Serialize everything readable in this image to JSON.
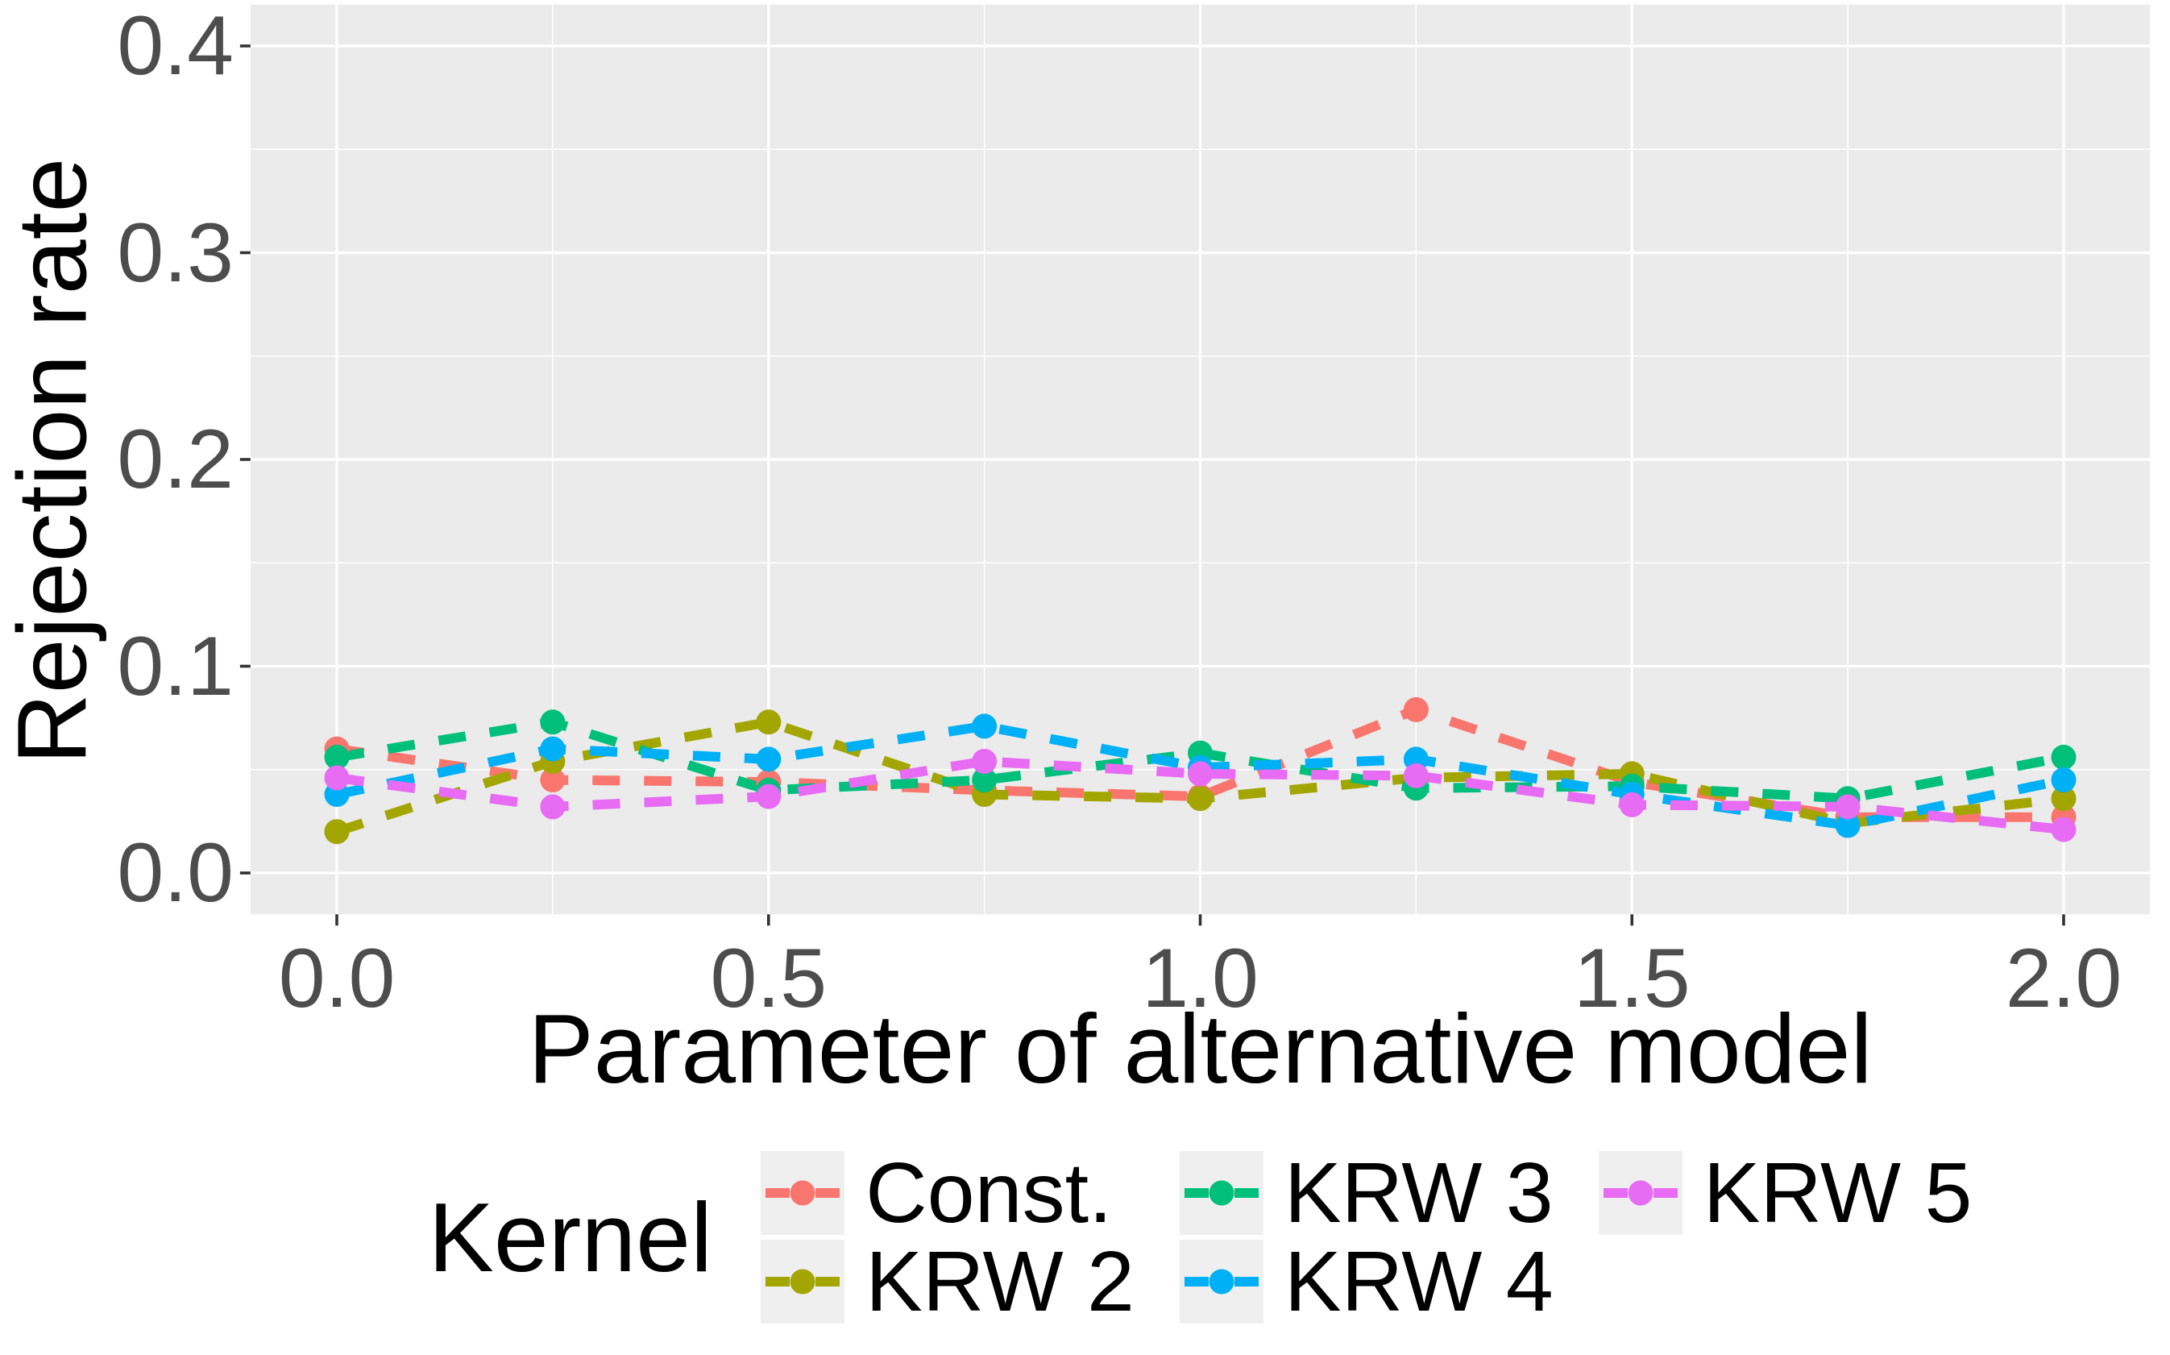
{
  "figure": {
    "background": "#FFFFFF",
    "panel_background": "#EBEBEB",
    "gridline_color": "#FFFFFF",
    "tick_mark_color": "#333333",
    "tick_label_color": "#4D4D4D",
    "axis_title_color": "#000000",
    "legend_key_background": "#EFEFEF"
  },
  "chart_data": {
    "type": "line",
    "title": "",
    "xlabel": "Parameter of alternative model",
    "ylabel": "Rejection rate",
    "legend_title": "Kernel",
    "legend_position": "bottom",
    "line_style": "dashed",
    "grid": "on",
    "xlim": [
      -0.1,
      2.1
    ],
    "ylim": [
      -0.02,
      0.42
    ],
    "x_ticks": [
      0.0,
      0.5,
      1.0,
      1.5,
      2.0
    ],
    "x_tick_labels": [
      "0.0",
      "0.5",
      "1.0",
      "1.5",
      "2.0"
    ],
    "x_minor_ticks": [
      0.25,
      0.75,
      1.25,
      1.75
    ],
    "y_ticks": [
      0.0,
      0.1,
      0.2,
      0.3,
      0.4
    ],
    "y_tick_labels": [
      "0.0",
      "0.1",
      "0.2",
      "0.3",
      "0.4"
    ],
    "y_minor_ticks": [
      0.05,
      0.15,
      0.25,
      0.35
    ],
    "x": [
      0.0,
      0.25,
      0.5,
      0.75,
      1.0,
      1.25,
      1.5,
      1.75,
      2.0
    ],
    "series": [
      {
        "name": "Const.",
        "color": "#F8766D",
        "values": [
          0.06,
          0.045,
          0.044,
          0.04,
          0.037,
          0.079,
          0.044,
          0.027,
          0.027
        ]
      },
      {
        "name": "KRW 2",
        "color": "#A3A500",
        "values": [
          0.02,
          0.054,
          0.073,
          0.038,
          0.036,
          0.046,
          0.048,
          0.024,
          0.036
        ]
      },
      {
        "name": "KRW 3",
        "color": "#00BF7D",
        "values": [
          0.056,
          0.073,
          0.04,
          0.045,
          0.058,
          0.041,
          0.042,
          0.036,
          0.056
        ]
      },
      {
        "name": "KRW 4",
        "color": "#00B0F6",
        "values": [
          0.038,
          0.06,
          0.055,
          0.071,
          0.051,
          0.055,
          0.038,
          0.023,
          0.045
        ]
      },
      {
        "name": "KRW 5",
        "color": "#E76BF3",
        "values": [
          0.046,
          0.032,
          0.037,
          0.054,
          0.048,
          0.047,
          0.033,
          0.032,
          0.021
        ]
      }
    ],
    "legend_columns": [
      [
        "Const.",
        "KRW 2"
      ],
      [
        "KRW 3",
        "KRW 4"
      ],
      [
        "KRW 5"
      ]
    ]
  }
}
